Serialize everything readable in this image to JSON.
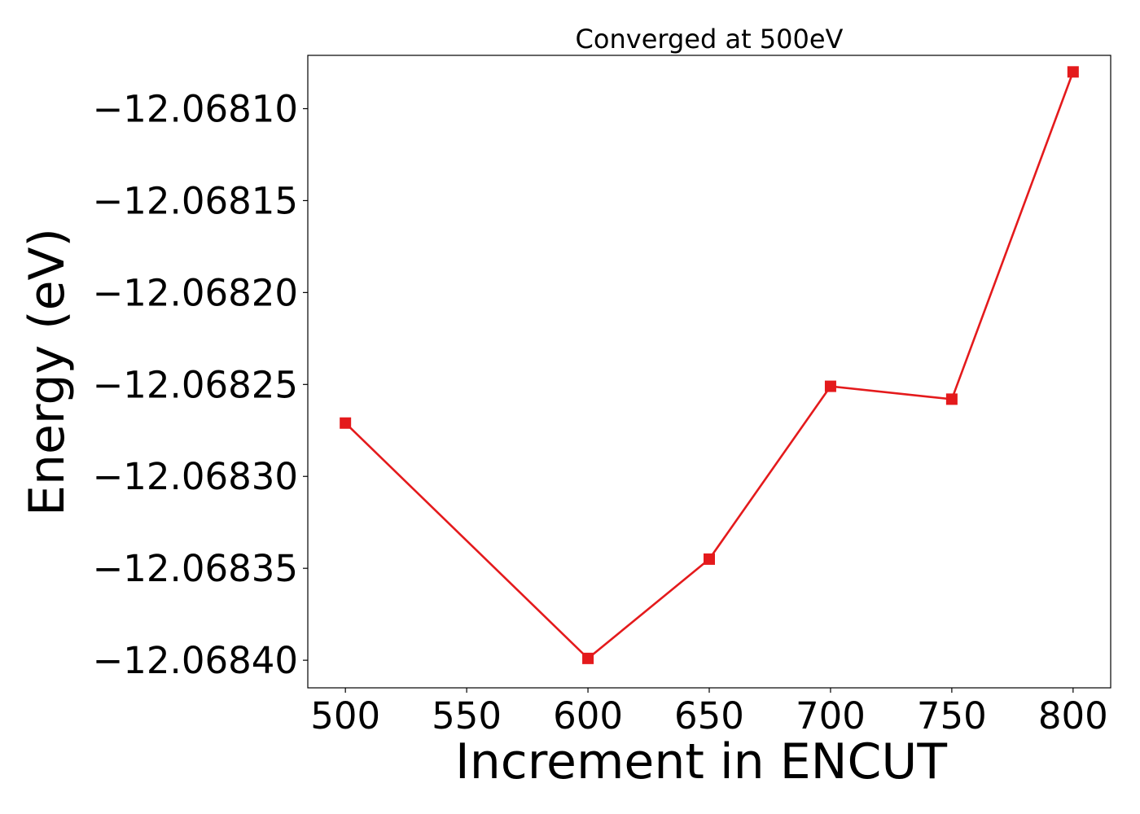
{
  "chart_data": {
    "type": "line",
    "title": "Converged at 500eV",
    "xlabel": "Increment in ENCUT",
    "ylabel": "Energy (eV)",
    "x": [
      500,
      600,
      650,
      700,
      750,
      800
    ],
    "series": [
      {
        "values": [
          -12.068271,
          -12.068399,
          -12.068345,
          -12.068251,
          -12.068258,
          -12.06808
        ],
        "color": "#e41a1c",
        "marker": "square"
      }
    ],
    "xticks": [
      500,
      550,
      600,
      650,
      700,
      750,
      800
    ],
    "xtick_labels": [
      "500",
      "550",
      "600",
      "650",
      "700",
      "750",
      "800"
    ],
    "yticks": [
      -12.0681,
      -12.06815,
      -12.0682,
      -12.06825,
      -12.0683,
      -12.06835,
      -12.0684
    ],
    "ytick_labels": [
      "−12.06810",
      "−12.06815",
      "−12.06820",
      "−12.06825",
      "−12.06830",
      "−12.06835",
      "−12.06840"
    ],
    "xlim": [
      484.5,
      815.5
    ],
    "ylim": [
      -12.068415,
      -12.068071
    ],
    "grid": false,
    "legend": "none"
  }
}
